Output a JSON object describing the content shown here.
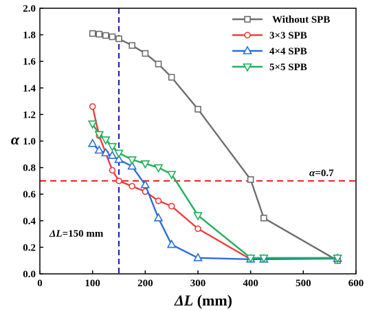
{
  "chart_data": {
    "type": "line",
    "xlabel_italic": "ΔL",
    "xlabel_rest": " (mm)",
    "ylabel": "α",
    "xlim": [
      0,
      600
    ],
    "ylim": [
      0.0,
      2.0
    ],
    "x_ticks": [
      "0",
      "100",
      "200",
      "300",
      "400",
      "500",
      "600"
    ],
    "y_ticks": [
      "0.0",
      "0.2",
      "0.4",
      "0.6",
      "0.8",
      "1.0",
      "1.2",
      "1.4",
      "1.6",
      "1.8",
      "2.0"
    ],
    "grid": false,
    "legend_position": "top-right",
    "series": [
      {
        "name": "Without SPB",
        "color": "#6d6d6d",
        "marker": "square",
        "x": [
          100,
          112.5,
          125,
          137.5,
          150,
          175,
          200,
          225,
          250,
          300,
          400,
          425,
          565
        ],
        "y": [
          1.81,
          1.805,
          1.795,
          1.785,
          1.77,
          1.72,
          1.66,
          1.58,
          1.48,
          1.24,
          0.71,
          0.42,
          0.1
        ]
      },
      {
        "name": "3×3 SPB",
        "color": "#ee3b3b",
        "marker": "circle",
        "x": [
          100,
          112.5,
          125,
          137.5,
          150,
          175,
          200,
          225,
          250,
          300,
          400,
          425,
          565
        ],
        "y": [
          1.26,
          1.04,
          0.91,
          0.78,
          0.7,
          0.66,
          0.62,
          0.55,
          0.51,
          0.34,
          0.11,
          0.115,
          0.12
        ]
      },
      {
        "name": "4×4 SPB",
        "color": "#2b6fd6",
        "marker": "triangle-up",
        "x": [
          100,
          112.5,
          125,
          137.5,
          150,
          175,
          200,
          225,
          250,
          300,
          400,
          425,
          565
        ],
        "y": [
          0.98,
          0.93,
          0.91,
          0.89,
          0.86,
          0.81,
          0.67,
          0.42,
          0.22,
          0.12,
          0.11,
          0.11,
          0.115
        ]
      },
      {
        "name": "5×5 SPB",
        "color": "#1fb05a",
        "marker": "triangle-down",
        "x": [
          100,
          112.5,
          125,
          137.5,
          150,
          175,
          200,
          225,
          250,
          300,
          400,
          425,
          565
        ],
        "y": [
          1.13,
          1.05,
          1.01,
          0.96,
          0.91,
          0.86,
          0.83,
          0.8,
          0.75,
          0.44,
          0.12,
          0.12,
          0.12
        ]
      }
    ],
    "reference_lines": {
      "horizontal": {
        "y": 0.7,
        "color": "#ee1c1c",
        "label_italic": "α",
        "label_rest": "=0.7"
      },
      "vertical": {
        "x": 150,
        "color": "#1a1aa6",
        "label_italic": "ΔL",
        "label_rest": "=150 mm"
      }
    }
  }
}
